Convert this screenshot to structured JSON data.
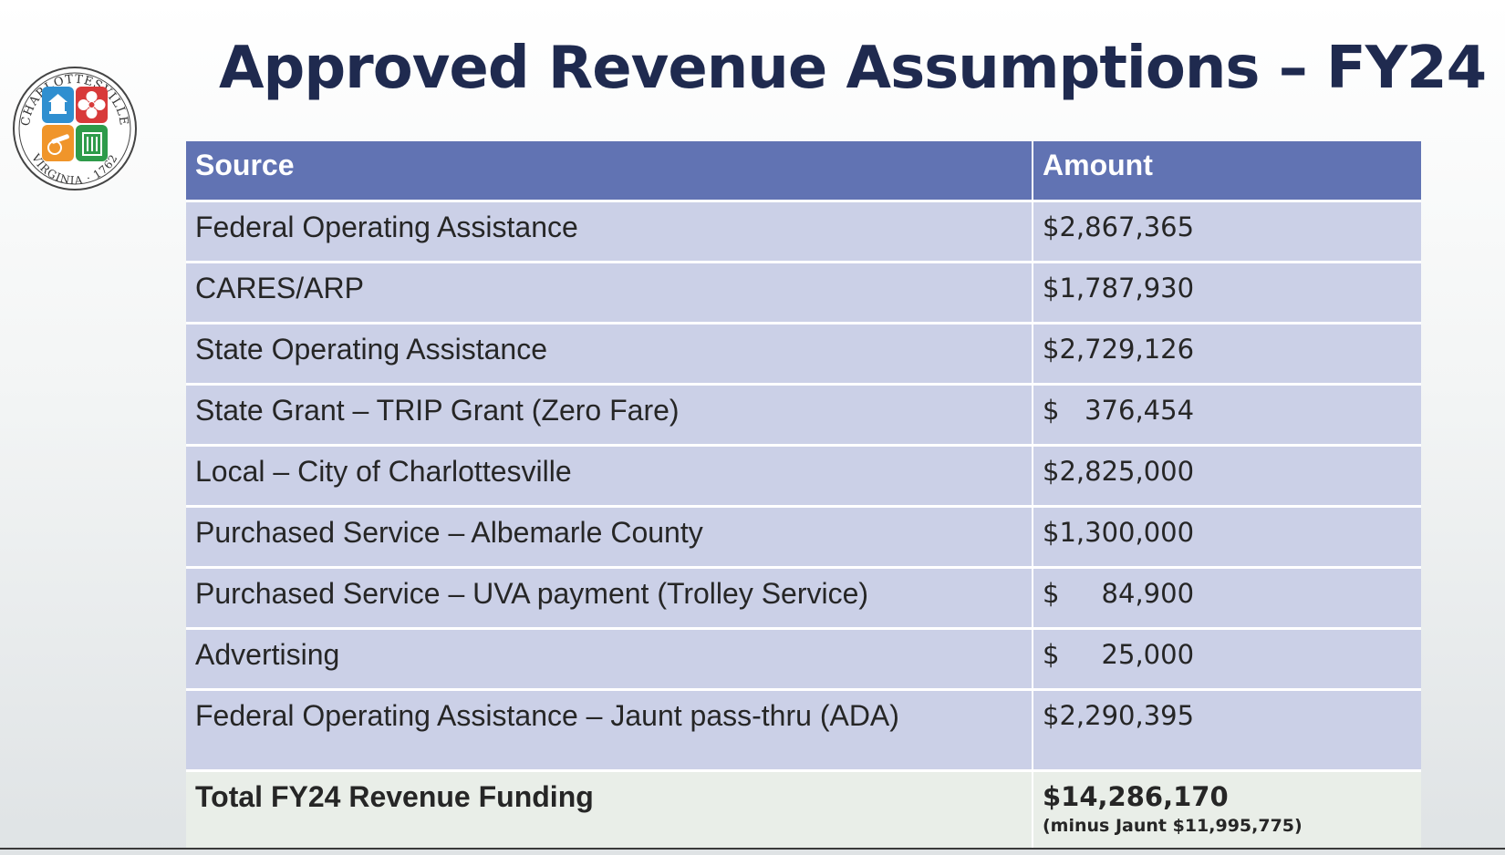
{
  "slide": {
    "title": "Approved Revenue Assumptions – FY24",
    "seal_text_top": "CHARLOTTESVILLE",
    "seal_text_bottom": "VIRGINIA · 1762"
  },
  "table": {
    "headers": [
      "Source",
      "Amount"
    ],
    "rows": [
      {
        "source": "Federal Operating Assistance",
        "amount": "$2,867,365"
      },
      {
        "source": "CARES/ARP",
        "amount": "$1,787,930"
      },
      {
        "source": "State Operating Assistance",
        "amount": "$2,729,126"
      },
      {
        "source": "State Grant – TRIP Grant (Zero Fare)",
        "amount": "$   376,454"
      },
      {
        "source": "Local – City of Charlottesville",
        "amount": "$2,825,000"
      },
      {
        "source": "Purchased Service – Albemarle County",
        "amount": "$1,300,000"
      },
      {
        "source": "Purchased Service – UVA payment (Trolley Service)",
        "amount": "$     84,900"
      },
      {
        "source": "Advertising",
        "amount": "$     25,000"
      },
      {
        "source": "Federal Operating Assistance – Jaunt pass-thru (ADA)",
        "amount": "$2,290,395"
      }
    ],
    "total": {
      "label": "Total FY24 Revenue Funding",
      "amount": "$14,286,170",
      "note": "(minus Jaunt $11,995,775)"
    }
  },
  "colors": {
    "title": "#1f2a4f",
    "header_bg": "#6173b3",
    "row_bg": "#cbd0e7",
    "total_bg": "#e9eee8"
  }
}
